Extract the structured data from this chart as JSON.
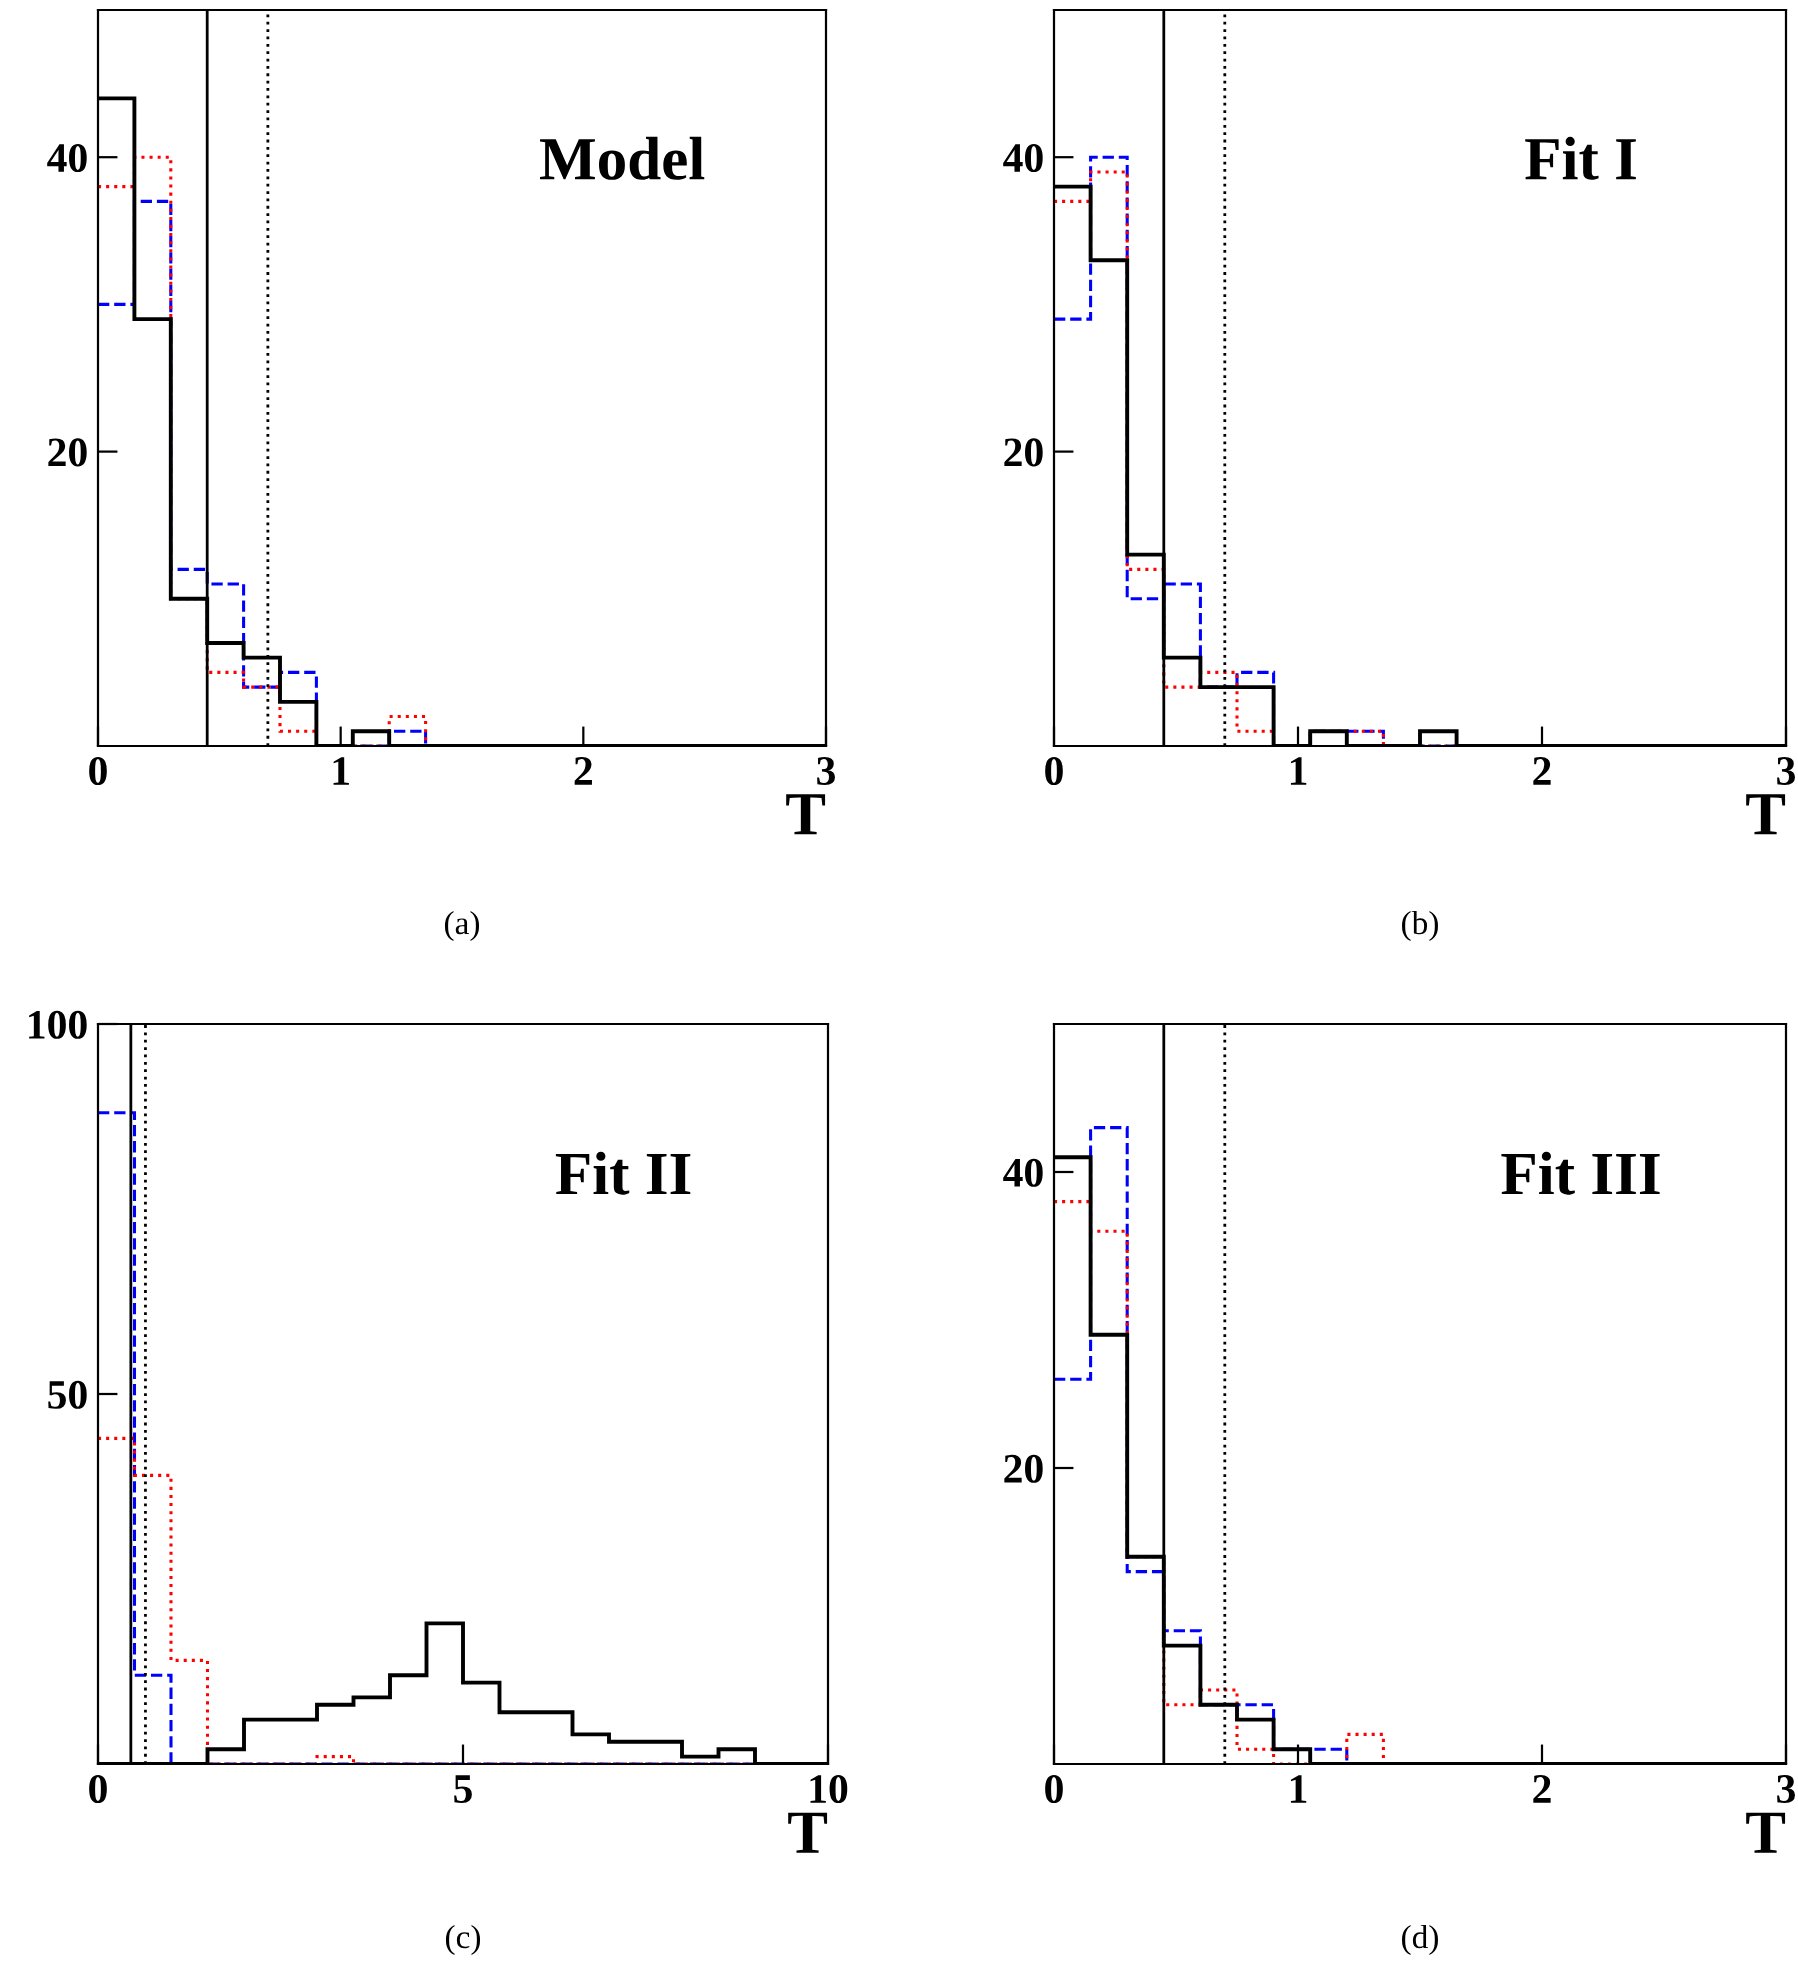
{
  "chart_data": [
    {
      "type": "histogram",
      "title": "Model",
      "xlabel": "T",
      "annotations": [
        "(a)"
      ],
      "bins": [
        0,
        0.15,
        0.3,
        0.45,
        0.6,
        0.75,
        0.9,
        1.05,
        1.2,
        1.35,
        1.5,
        1.65,
        1.8,
        1.95,
        2.1,
        2.25,
        2.4,
        2.55,
        2.7,
        2.85,
        3
      ],
      "xlim": [
        0,
        3
      ],
      "xticks": [
        0,
        1,
        2,
        3
      ],
      "ylim": [
        0,
        50
      ],
      "yticks": [
        20,
        40
      ],
      "grid": false,
      "legend": false,
      "series": [
        {
          "color": "#0000ff",
          "line_style": "dashed",
          "values": [
            30,
            37,
            12,
            11,
            4,
            5,
            0,
            0,
            1,
            0,
            0,
            0,
            0,
            0,
            0,
            0,
            0,
            0,
            0,
            0
          ]
        },
        {
          "color": "#ff0000",
          "line_style": "dotted",
          "values": [
            38,
            40,
            10,
            5,
            4,
            1,
            0,
            0,
            2,
            0,
            0,
            0,
            0,
            0,
            0,
            0,
            0,
            0,
            0,
            0
          ]
        },
        {
          "color": "#000000",
          "line_style": "solid",
          "values": [
            44,
            29,
            10,
            7,
            6,
            3,
            0,
            1,
            0,
            0,
            0,
            0,
            0,
            0,
            0,
            0,
            0,
            0,
            0,
            0
          ]
        }
      ],
      "ref_lines": [
        {
          "axis": "x",
          "value": 0.45,
          "color": "#000000",
          "line_style": "solid"
        },
        {
          "axis": "x",
          "value": 0.7,
          "color": "#000000",
          "line_style": "dotted"
        }
      ]
    },
    {
      "type": "histogram",
      "title": "Fit I",
      "xlabel": "T",
      "annotations": [
        "(b)"
      ],
      "bins": [
        0,
        0.15,
        0.3,
        0.45,
        0.6,
        0.75,
        0.9,
        1.05,
        1.2,
        1.35,
        1.5,
        1.65,
        1.8,
        1.95,
        2.1,
        2.25,
        2.4,
        2.55,
        2.7,
        2.85,
        3
      ],
      "xlim": [
        0,
        3
      ],
      "xticks": [
        0,
        1,
        2,
        3
      ],
      "ylim": [
        0,
        50
      ],
      "yticks": [
        20,
        40
      ],
      "grid": false,
      "legend": false,
      "series": [
        {
          "color": "#0000ff",
          "line_style": "dashed",
          "values": [
            29,
            40,
            10,
            11,
            4,
            5,
            0,
            1,
            1,
            0,
            0,
            0,
            0,
            0,
            0,
            0,
            0,
            0,
            0,
            0
          ]
        },
        {
          "color": "#ff0000",
          "line_style": "dotted",
          "values": [
            37,
            39,
            12,
            4,
            5,
            1,
            0,
            1,
            1,
            0,
            0,
            0,
            0,
            0,
            0,
            0,
            0,
            0,
            0,
            0
          ]
        },
        {
          "color": "#000000",
          "line_style": "solid",
          "values": [
            38,
            33,
            13,
            6,
            4,
            4,
            0,
            1,
            0,
            0,
            1,
            0,
            0,
            0,
            0,
            0,
            0,
            0,
            0,
            0
          ]
        }
      ],
      "ref_lines": [
        {
          "axis": "x",
          "value": 0.45,
          "color": "#000000",
          "line_style": "solid"
        },
        {
          "axis": "x",
          "value": 0.7,
          "color": "#000000",
          "line_style": "dotted"
        }
      ]
    },
    {
      "type": "histogram",
      "title": "Fit II",
      "xlabel": "T",
      "annotations": [
        "(c)"
      ],
      "bins": [
        0,
        0.5,
        1,
        1.5,
        2,
        2.5,
        3,
        3.5,
        4,
        4.5,
        5,
        5.5,
        6,
        6.5,
        7,
        7.5,
        8,
        8.5,
        9,
        9.5,
        10
      ],
      "xlim": [
        0,
        10
      ],
      "xticks": [
        0,
        5,
        10
      ],
      "ylim": [
        0,
        100
      ],
      "yticks": [
        50,
        100
      ],
      "grid": false,
      "legend": false,
      "series": [
        {
          "color": "#0000ff",
          "line_style": "dashed",
          "values": [
            88,
            12,
            0,
            0,
            0,
            0,
            0,
            0,
            0,
            0,
            0,
            0,
            0,
            0,
            0,
            0,
            0,
            0,
            0,
            0
          ]
        },
        {
          "color": "#ff0000",
          "line_style": "dotted",
          "values": [
            44,
            39,
            14,
            0,
            0,
            0,
            1,
            0,
            0,
            0,
            0,
            0,
            0,
            0,
            0,
            0,
            0,
            0,
            0,
            0
          ]
        },
        {
          "color": "#000000",
          "line_style": "solid",
          "values": [
            0,
            0,
            0,
            2,
            6,
            6,
            8,
            9,
            12,
            19,
            11,
            7,
            7,
            4,
            3,
            3,
            1,
            2,
            0,
            0
          ]
        }
      ],
      "ref_lines": [
        {
          "axis": "x",
          "value": 0.45,
          "color": "#000000",
          "line_style": "solid"
        },
        {
          "axis": "x",
          "value": 0.65,
          "color": "#000000",
          "line_style": "dotted"
        }
      ]
    },
    {
      "type": "histogram",
      "title": "Fit III",
      "xlabel": "T",
      "annotations": [
        "(d)"
      ],
      "bins": [
        0,
        0.15,
        0.3,
        0.45,
        0.6,
        0.75,
        0.9,
        1.05,
        1.2,
        1.35,
        1.5,
        1.65,
        1.8,
        1.95,
        2.1,
        2.25,
        2.4,
        2.55,
        2.7,
        2.85,
        3
      ],
      "xlim": [
        0,
        3
      ],
      "xticks": [
        0,
        1,
        2,
        3
      ],
      "ylim": [
        0,
        50
      ],
      "yticks": [
        20,
        40
      ],
      "grid": false,
      "legend": false,
      "series": [
        {
          "color": "#0000ff",
          "line_style": "dashed",
          "values": [
            26,
            43,
            13,
            9,
            4,
            4,
            1,
            1,
            0,
            0,
            0,
            0,
            0,
            0,
            0,
            0,
            0,
            0,
            0,
            0
          ]
        },
        {
          "color": "#ff0000",
          "line_style": "dotted",
          "values": [
            38,
            36,
            14,
            4,
            5,
            1,
            0,
            0,
            2,
            0,
            0,
            0,
            0,
            0,
            0,
            0,
            0,
            0,
            0,
            0
          ]
        },
        {
          "color": "#000000",
          "line_style": "solid",
          "values": [
            41,
            29,
            14,
            8,
            4,
            3,
            1,
            0,
            0,
            0,
            0,
            0,
            0,
            0,
            0,
            0,
            0,
            0,
            0,
            0
          ]
        }
      ],
      "ref_lines": [
        {
          "axis": "x",
          "value": 0.45,
          "color": "#000000",
          "line_style": "solid"
        },
        {
          "axis": "x",
          "value": 0.7,
          "color": "#000000",
          "line_style": "dotted"
        }
      ]
    }
  ]
}
